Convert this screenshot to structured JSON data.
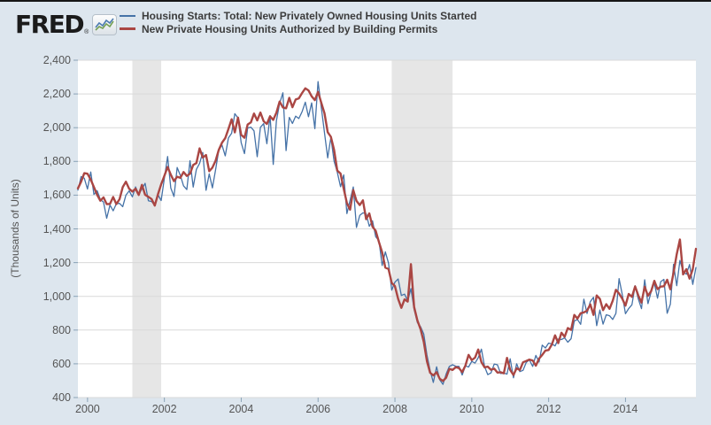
{
  "page": {
    "background": "#dde6ee",
    "top_border_color": "#161616"
  },
  "logo": {
    "text": "FRED",
    "registered": "®"
  },
  "chart_data": {
    "type": "line",
    "title": "",
    "ylabel": "(Thousands of Units)",
    "legend_position": "top",
    "grid": true,
    "plot_background": "#ffffff",
    "grid_color": "#d9d9d9",
    "recession_color": "#e6e6e6",
    "tick_color": "#8aa2b6",
    "axis_text_color": "#555555",
    "x_min": 1999.75,
    "x_max": 2015.8333,
    "y_min": 400,
    "y_max": 2400,
    "y_ticks": [
      400,
      600,
      800,
      1000,
      1200,
      1400,
      1600,
      1800,
      2000,
      2200,
      2400
    ],
    "x_ticks": [
      2000,
      2002,
      2004,
      2006,
      2008,
      2010,
      2012,
      2014
    ],
    "recessions": [
      [
        2001.167,
        2001.917
      ],
      [
        2007.917,
        2009.5
      ]
    ],
    "x_start": 1999.75,
    "x_step_years": 0.083333,
    "frequency": "monthly",
    "series": [
      {
        "name": "Housing Starts: Total: New Privately Owned Housing Units Started",
        "color": "#4572a7",
        "width": 1.3,
        "values": [
          1630,
          1710,
          1700,
          1636,
          1737,
          1604,
          1626,
          1575,
          1559,
          1463,
          1541,
          1507,
          1549,
          1551,
          1532,
          1600,
          1625,
          1590,
          1649,
          1605,
          1636,
          1670,
          1567,
          1562,
          1540,
          1602,
          1568,
          1698,
          1829,
          1642,
          1592,
          1764,
          1717,
          1655,
          1633,
          1804,
          1648,
          1753,
          1788,
          1853,
          1629,
          1726,
          1643,
          1751,
          1867,
          1897,
          1833,
          1939,
          1967,
          2083,
          2057,
          1911,
          1846,
          1998,
          2003,
          1981,
          1828,
          2002,
          2024,
          1905,
          2072,
          1782,
          2042,
          2144,
          2207,
          1864,
          2061,
          2025,
          2068,
          2054,
          2095,
          2151,
          2065,
          2147,
          1994,
          2273,
          2119,
          1969,
          1821,
          1942,
          1802,
          1737,
          1650,
          1720,
          1491,
          1570,
          1649,
          1409,
          1480,
          1495,
          1490,
          1415,
          1448,
          1354,
          1330,
          1183,
          1264,
          1197,
          1037,
          1084,
          1103,
          1005,
          1013,
          973,
          1046,
          923,
          844,
          820,
          777,
          652,
          560,
          490,
          582,
          505,
          478,
          540,
          585,
          594,
          586,
          585,
          534,
          588,
          581,
          614,
          604,
          636,
          687,
          583,
          536,
          546,
          599,
          594,
          543,
          545,
          539,
          630,
          517,
          600,
          554,
          561,
          608,
          623,
          585,
          650,
          610,
          711,
          694,
          723,
          718,
          706,
          747,
          744,
          754,
          728,
          749,
          854,
          863,
          834,
          983,
          898,
          969,
          994,
          826,
          919,
          835,
          891,
          885,
          863,
          899,
          1105,
          1010,
          897,
          928,
          950,
          1063,
          984,
          927,
          1098,
          957,
          1026,
          1079,
          989,
          1087,
          1101,
          900,
          954,
          1190,
          1063,
          1213,
          1147,
          1131,
          1189,
          1071,
          1171
        ]
      },
      {
        "name": "New Private Housing Units Authorized by Building Permits",
        "color": "#aa4643",
        "width": 2.4,
        "values": [
          1640,
          1680,
          1730,
          1727,
          1692,
          1647,
          1602,
          1567,
          1587,
          1547,
          1548,
          1589,
          1547,
          1576,
          1647,
          1680,
          1638,
          1621,
          1638,
          1601,
          1661,
          1602,
          1590,
          1577,
          1538,
          1605,
          1664,
          1714,
          1767,
          1721,
          1683,
          1709,
          1703,
          1737,
          1714,
          1727,
          1779,
          1790,
          1877,
          1823,
          1838,
          1742,
          1763,
          1804,
          1869,
          1911,
          1938,
          1992,
          2050,
          1972,
          2060,
          1958,
          1940,
          2019,
          2031,
          2084,
          2043,
          2090,
          2038,
          2022,
          2067,
          2046,
          2089,
          2155,
          2120,
          2115,
          2177,
          2121,
          2167,
          2174,
          2206,
          2233,
          2221,
          2186,
          2163,
          2212,
          2147,
          2085,
          1973,
          1946,
          1869,
          1746,
          1728,
          1638,
          1553,
          1514,
          1630,
          1566,
          1541,
          1569,
          1457,
          1492,
          1413,
          1389,
          1322,
          1261,
          1170,
          1162,
          1080,
          1061,
          984,
          932,
          982,
          969,
          1191,
          937,
          857,
          805,
          730,
          615,
          547,
          531,
          550,
          511,
          498,
          518,
          570,
          564,
          580,
          575,
          551,
          589,
          653,
          622,
          637,
          685,
          610,
          579,
          583,
          565,
          571,
          548,
          550,
          544,
          635,
          563,
          534,
          574,
          563,
          609,
          617,
          625,
          620,
          589,
          631,
          653,
          679,
          682,
          715,
          769,
          723,
          784,
          760,
          812,
          801,
          890,
          868,
          900,
          905,
          915,
          952,
          890,
          1005,
          985,
          918,
          954,
          926,
          974,
          1039,
          1017,
          986,
          945,
          1014,
          997,
          1059,
          1005,
          963,
          1057,
          1003,
          1031,
          1092,
          1043,
          1058,
          1060,
          1098,
          1042,
          1140,
          1250,
          1337,
          1130,
          1161,
          1105,
          1161,
          1282
        ]
      }
    ]
  }
}
